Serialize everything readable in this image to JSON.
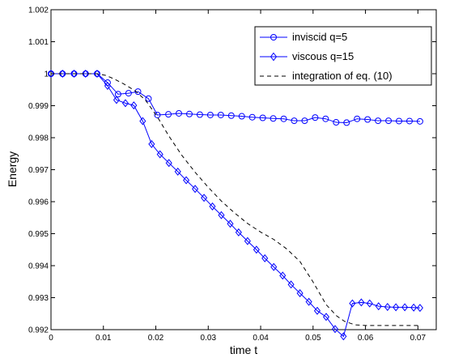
{
  "chart_data": {
    "type": "line",
    "xlabel": "time t",
    "ylabel": "Energy",
    "xlim": [
      0,
      0.0735
    ],
    "ylim": [
      0.992,
      1.002
    ],
    "xticks": [
      "0",
      "0.01",
      "0.02",
      "0.03",
      "0.04",
      "0.05",
      "0.06",
      "0.07"
    ],
    "yticks": [
      "0.992",
      "0.993",
      "0.994",
      "0.995",
      "0.996",
      "0.997",
      "0.998",
      "0.999",
      "1",
      "1.001",
      "1.002"
    ],
    "grid": false,
    "legend_position": "top-right",
    "series": [
      {
        "name": "inviscid q=5",
        "color": "#0000ff",
        "marker": "circle",
        "linestyle": "solid",
        "x": [
          0,
          0.0022,
          0.0044,
          0.0066,
          0.0088,
          0.0108,
          0.0128,
          0.0148,
          0.0166,
          0.0186,
          0.0203,
          0.0224,
          0.0244,
          0.0264,
          0.0284,
          0.0304,
          0.0324,
          0.0344,
          0.0364,
          0.0384,
          0.0404,
          0.0424,
          0.0444,
          0.0464,
          0.0484,
          0.0504,
          0.0524,
          0.0544,
          0.0564,
          0.0584,
          0.0604,
          0.0624,
          0.0644,
          0.0664,
          0.0684,
          0.0704
        ],
        "values": [
          1.0,
          1.0,
          1.0,
          1.0,
          1.0,
          0.99972,
          0.99936,
          0.99939,
          0.99944,
          0.99922,
          0.99871,
          0.99873,
          0.99876,
          0.99874,
          0.99872,
          0.99871,
          0.99871,
          0.99869,
          0.99867,
          0.99864,
          0.99862,
          0.9986,
          0.99859,
          0.99853,
          0.99853,
          0.99863,
          0.99859,
          0.99848,
          0.99847,
          0.99859,
          0.99857,
          0.99853,
          0.99853,
          0.99852,
          0.99852,
          0.99851
        ]
      },
      {
        "name": "viscous q=15",
        "color": "#0000ff",
        "marker": "diamond",
        "linestyle": "solid",
        "x": [
          0,
          0.0022,
          0.0044,
          0.0066,
          0.0088,
          0.0108,
          0.0125,
          0.0142,
          0.0158,
          0.0175,
          0.0192,
          0.0208,
          0.0225,
          0.0242,
          0.0258,
          0.0275,
          0.0292,
          0.0308,
          0.0325,
          0.0342,
          0.0358,
          0.0375,
          0.0392,
          0.0408,
          0.0425,
          0.0442,
          0.0458,
          0.0475,
          0.0492,
          0.0508,
          0.0525,
          0.0542,
          0.0558,
          0.0575,
          0.0592,
          0.0608,
          0.0625,
          0.0642,
          0.0658,
          0.0675,
          0.0692,
          0.0704
        ],
        "values": [
          1.0,
          1.0,
          1.0,
          1.0,
          1.0,
          0.99962,
          0.99918,
          0.99908,
          0.99901,
          0.99852,
          0.9978,
          0.99748,
          0.99721,
          0.99694,
          0.99667,
          0.9964,
          0.99612,
          0.99585,
          0.99558,
          0.99531,
          0.99504,
          0.99477,
          0.9945,
          0.99423,
          0.99396,
          0.99369,
          0.99341,
          0.99314,
          0.99287,
          0.99259,
          0.9924,
          0.99202,
          0.99179,
          0.99282,
          0.99285,
          0.99282,
          0.99273,
          0.99271,
          0.9927,
          0.9927,
          0.99269,
          0.99268
        ]
      },
      {
        "name": "integration of eq. (10)",
        "color": "#000000",
        "marker": "none",
        "linestyle": "dashed",
        "x": [
          0,
          0.0088,
          0.0104,
          0.012,
          0.014,
          0.016,
          0.018,
          0.0203,
          0.0225,
          0.025,
          0.0275,
          0.03,
          0.0325,
          0.035,
          0.0375,
          0.04,
          0.0425,
          0.045,
          0.0475,
          0.05,
          0.0525,
          0.0545,
          0.056,
          0.058,
          0.06,
          0.065,
          0.0704
        ],
        "values": [
          1.0,
          1.0,
          0.99995,
          0.99984,
          0.99967,
          0.99947,
          0.99918,
          0.99865,
          0.99805,
          0.99744,
          0.99692,
          0.99645,
          0.99602,
          0.99565,
          0.99532,
          0.99505,
          0.99482,
          0.99452,
          0.99413,
          0.99349,
          0.99278,
          0.99243,
          0.99226,
          0.99215,
          0.99213,
          0.99213,
          0.99213
        ]
      }
    ]
  }
}
